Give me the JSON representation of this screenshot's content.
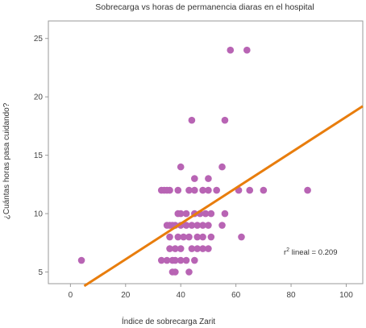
{
  "chart_data": {
    "type": "scatter",
    "title": "Sobrecarga vs horas de permanencia diaras en el hospital",
    "xlabel": "Índice de sobrecarga Zarit",
    "ylabel": "¿Cuántas horas pasa cuidando?",
    "xlim": [
      -8,
      106
    ],
    "ylim": [
      4,
      26.5
    ],
    "xticks": [
      0,
      20,
      40,
      60,
      80,
      100
    ],
    "yticks": [
      5,
      10,
      15,
      20,
      25
    ],
    "grid": false,
    "point_color": "#b864b4",
    "line_color": "#e87d0d",
    "annotation": {
      "prefix": "r",
      "sup": "2",
      "text": " lineal = 0.209"
    },
    "points": [
      [
        4,
        6
      ],
      [
        33,
        12
      ],
      [
        34,
        12
      ],
      [
        35,
        12
      ],
      [
        36,
        12
      ],
      [
        44,
        18
      ],
      [
        56,
        18
      ],
      [
        58,
        24
      ],
      [
        64,
        24
      ],
      [
        40,
        14
      ],
      [
        45,
        13
      ],
      [
        50,
        13
      ],
      [
        55,
        14
      ],
      [
        39,
        12
      ],
      [
        43,
        12
      ],
      [
        45,
        12
      ],
      [
        48,
        12
      ],
      [
        50,
        12
      ],
      [
        53,
        12
      ],
      [
        61,
        12
      ],
      [
        65,
        12
      ],
      [
        70,
        12
      ],
      [
        86,
        12
      ],
      [
        39,
        10
      ],
      [
        40,
        10
      ],
      [
        42,
        10
      ],
      [
        45,
        10
      ],
      [
        47,
        10
      ],
      [
        49,
        10
      ],
      [
        51,
        10
      ],
      [
        56,
        10
      ],
      [
        36,
        9
      ],
      [
        38,
        9
      ],
      [
        40,
        9
      ],
      [
        42,
        9
      ],
      [
        44,
        9
      ],
      [
        46,
        9
      ],
      [
        48,
        9
      ],
      [
        50,
        9
      ],
      [
        55,
        9
      ],
      [
        35,
        9
      ],
      [
        37,
        9
      ],
      [
        39,
        8
      ],
      [
        41,
        8
      ],
      [
        43,
        8
      ],
      [
        36,
        8
      ],
      [
        46,
        8
      ],
      [
        48,
        8
      ],
      [
        51,
        8
      ],
      [
        62,
        8
      ],
      [
        36,
        7
      ],
      [
        38,
        7
      ],
      [
        40,
        7
      ],
      [
        44,
        7
      ],
      [
        46,
        7
      ],
      [
        48,
        7
      ],
      [
        50,
        7
      ],
      [
        33,
        6
      ],
      [
        35,
        6
      ],
      [
        37,
        6
      ],
      [
        38,
        6
      ],
      [
        40,
        6
      ],
      [
        42,
        6
      ],
      [
        45,
        6
      ],
      [
        37,
        5
      ],
      [
        38,
        5
      ],
      [
        43,
        5
      ]
    ],
    "fit_line": [
      [
        5,
        3.8
      ],
      [
        106,
        19.2
      ]
    ]
  }
}
